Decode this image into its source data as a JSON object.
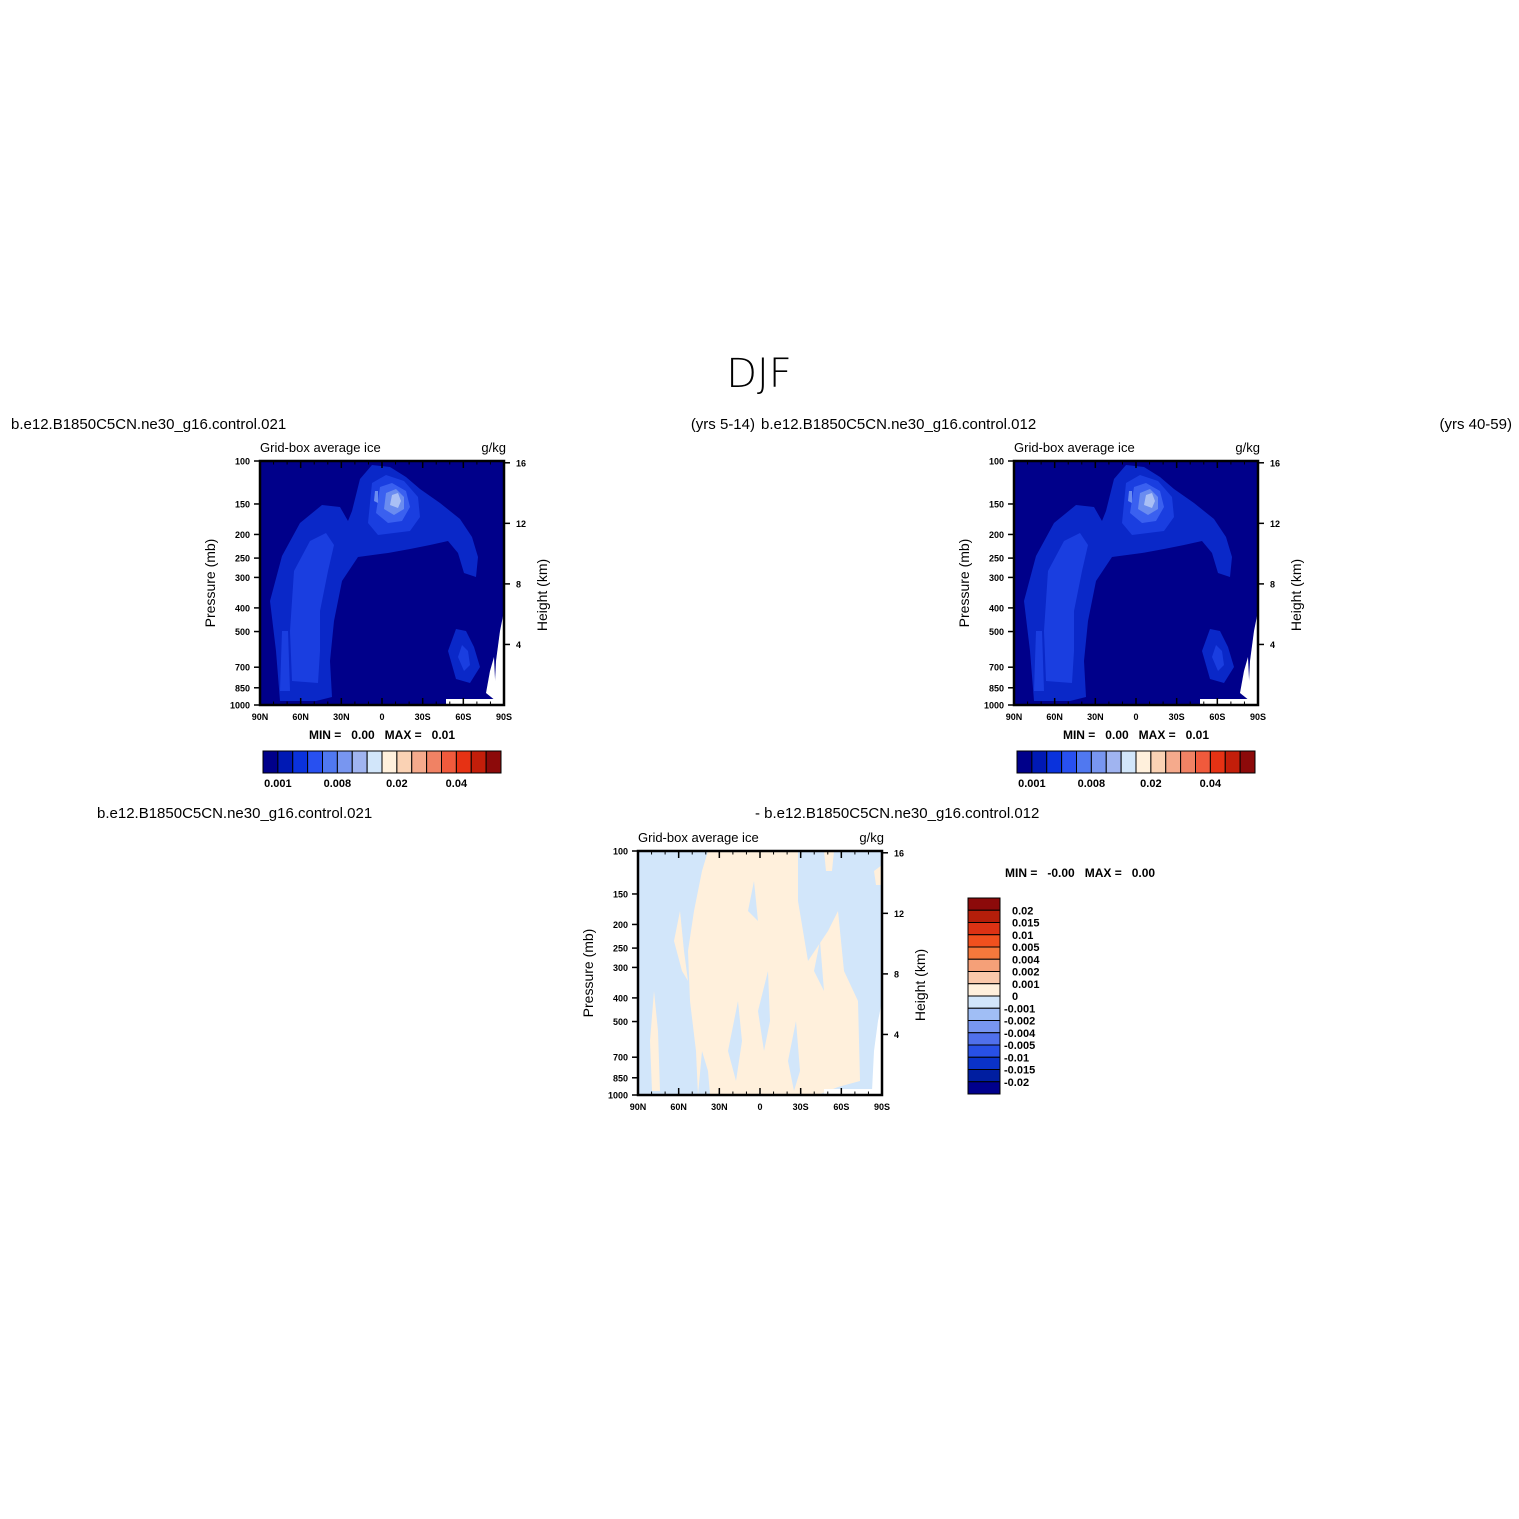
{
  "page": {
    "title": "DJF",
    "left_header": {
      "case": "b.e12.B1850C5CN.ne30_g16.control.021",
      "years": "(yrs 5-14)"
    },
    "right_header": {
      "case": "b.e12.B1850C5CN.ne30_g16.control.012",
      "years": "(yrs 40-59)"
    },
    "diff_header": {
      "case_a": "b.e12.B1850C5CN.ne30_g16.control.021",
      "case_b": "- b.e12.B1850C5CN.ne30_g16.control.012"
    }
  },
  "chart_data": [
    {
      "id": "panel-left",
      "type": "heatmap",
      "subtitle": "Grid-box average ice",
      "units": "g/kg",
      "xlabel": "",
      "ylabel": "Pressure (mb)",
      "ylabel_right": "Height (km)",
      "x_ticks": [
        "90N",
        "60N",
        "30N",
        "0",
        "30S",
        "60S",
        "90S"
      ],
      "y_ticks": [
        "100",
        "150",
        "200",
        "250",
        "300",
        "400",
        "500",
        "700",
        "850",
        "1000"
      ],
      "y_right_ticks": [
        "16",
        "12",
        "8",
        "4"
      ],
      "ylim": [
        1000,
        100
      ],
      "min_text": "MIN =   0.00   MAX =   0.01",
      "colorbar_labels": [
        "0.001",
        "0.008",
        "0.02",
        "0.04"
      ],
      "colorbar_colors": [
        "#00008a",
        "#0019b4",
        "#0a32dc",
        "#2850f0",
        "#5078f0",
        "#7896f0",
        "#a0b4f0",
        "#d2e6fa",
        "#fff0dc",
        "#fad2b4",
        "#f5aa8c",
        "#f08264",
        "#f05a3c",
        "#e63214",
        "#c31e0a",
        "#8c0a0a"
      ]
    },
    {
      "id": "panel-right",
      "type": "heatmap",
      "subtitle": "Grid-box average ice",
      "units": "g/kg",
      "xlabel": "",
      "ylabel": "Pressure (mb)",
      "ylabel_right": "Height (km)",
      "x_ticks": [
        "90N",
        "60N",
        "30N",
        "0",
        "30S",
        "60S",
        "90S"
      ],
      "y_ticks": [
        "100",
        "150",
        "200",
        "250",
        "300",
        "400",
        "500",
        "700",
        "850",
        "1000"
      ],
      "y_right_ticks": [
        "16",
        "12",
        "8",
        "4"
      ],
      "ylim": [
        1000,
        100
      ],
      "min_text": "MIN =   0.00   MAX =   0.01",
      "colorbar_labels": [
        "0.001",
        "0.008",
        "0.02",
        "0.04"
      ],
      "colorbar_colors": [
        "#00008a",
        "#0019b4",
        "#0a32dc",
        "#2850f0",
        "#5078f0",
        "#7896f0",
        "#a0b4f0",
        "#d2e6fa",
        "#fff0dc",
        "#fad2b4",
        "#f5aa8c",
        "#f08264",
        "#f05a3c",
        "#e63214",
        "#c31e0a",
        "#8c0a0a"
      ]
    },
    {
      "id": "panel-diff",
      "type": "heatmap",
      "subtitle": "Grid-box average ice",
      "units": "g/kg",
      "xlabel": "",
      "ylabel": "Pressure (mb)",
      "ylabel_right": "Height (km)",
      "x_ticks": [
        "90N",
        "60N",
        "30N",
        "0",
        "30S",
        "60S",
        "90S"
      ],
      "y_ticks": [
        "100",
        "150",
        "200",
        "250",
        "300",
        "400",
        "500",
        "700",
        "850",
        "1000"
      ],
      "y_right_ticks": [
        "16",
        "12",
        "8",
        "4"
      ],
      "ylim": [
        1000,
        100
      ],
      "min_text": "MIN =   -0.00   MAX =   0.00",
      "colorbar_labels": [
        "0.02",
        "0.015",
        "0.01",
        "0.005",
        "0.004",
        "0.002",
        "0.001",
        "0",
        "-0.001",
        "-0.002",
        "-0.004",
        "-0.005",
        "-0.01",
        "-0.015",
        "-0.02"
      ],
      "colorbar_colors": [
        "#8c0a0a",
        "#b41e0a",
        "#dc3214",
        "#f0501e",
        "#f5783c",
        "#f5a078",
        "#fac8aa",
        "#fff0dc",
        "#d2e6fa",
        "#a0bef5",
        "#7896f0",
        "#5070eb",
        "#2850e6",
        "#0a32c8",
        "#001ea0",
        "#00008c"
      ]
    }
  ]
}
